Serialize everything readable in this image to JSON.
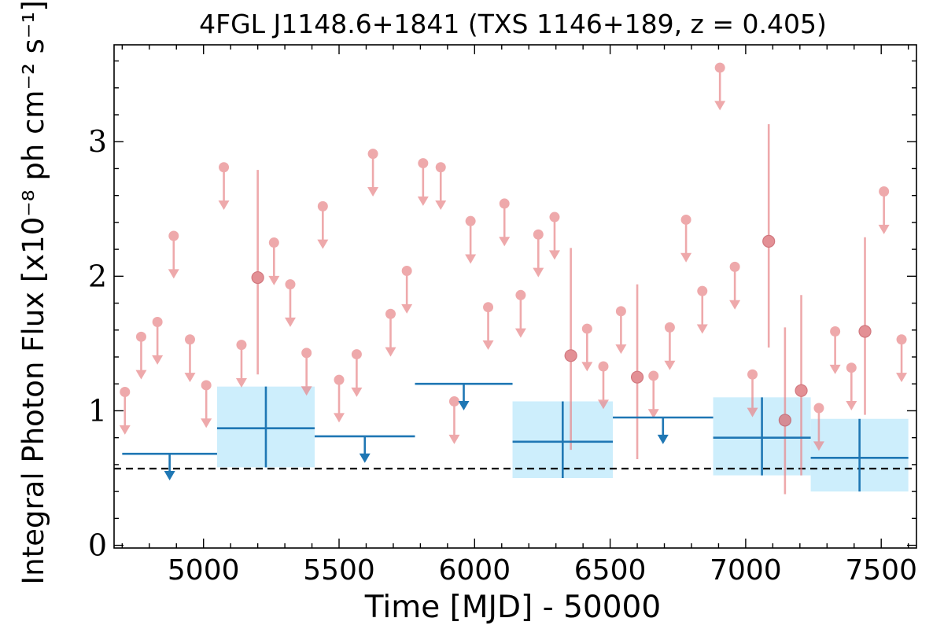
{
  "chart_data": {
    "type": "scatter",
    "title": "4FGL J1148.6+1841 (TXS 1146+189, z = 0.405)",
    "xlabel": "Time [MJD] - 50000",
    "ylabel": "Integral Photon Flux [x10⁻⁸ ph cm⁻² s⁻¹]",
    "xlim": [
      4670,
      7630
    ],
    "ylim": [
      -0.02,
      3.72
    ],
    "xticks": [
      5000,
      5500,
      6000,
      6500,
      7000,
      7500
    ],
    "yticks": [
      0,
      1,
      2,
      3
    ],
    "grid": false,
    "dashed_reference_line": 0.57,
    "colors": {
      "short_bin": "#e8888c",
      "long_bin": "#1f77b4",
      "long_bin_band": "#cdeefc",
      "reference_line": "#000000"
    },
    "short_bin_upper_limits": [
      {
        "x": 4710,
        "y": 1.14
      },
      {
        "x": 4770,
        "y": 1.55
      },
      {
        "x": 4830,
        "y": 1.66
      },
      {
        "x": 4890,
        "y": 2.3
      },
      {
        "x": 4950,
        "y": 1.53
      },
      {
        "x": 5010,
        "y": 1.19
      },
      {
        "x": 5075,
        "y": 2.81
      },
      {
        "x": 5140,
        "y": 1.49
      },
      {
        "x": 5260,
        "y": 2.25
      },
      {
        "x": 5320,
        "y": 1.94
      },
      {
        "x": 5380,
        "y": 1.43
      },
      {
        "x": 5440,
        "y": 2.52
      },
      {
        "x": 5500,
        "y": 1.23
      },
      {
        "x": 5565,
        "y": 1.42
      },
      {
        "x": 5625,
        "y": 2.91
      },
      {
        "x": 5690,
        "y": 1.72
      },
      {
        "x": 5750,
        "y": 2.04
      },
      {
        "x": 5810,
        "y": 2.84
      },
      {
        "x": 5875,
        "y": 2.81
      },
      {
        "x": 5925,
        "y": 1.07
      },
      {
        "x": 5985,
        "y": 2.41
      },
      {
        "x": 6050,
        "y": 1.77
      },
      {
        "x": 6110,
        "y": 2.54
      },
      {
        "x": 6170,
        "y": 1.86
      },
      {
        "x": 6235,
        "y": 2.31
      },
      {
        "x": 6295,
        "y": 2.44
      },
      {
        "x": 6415,
        "y": 1.61
      },
      {
        "x": 6475,
        "y": 1.33
      },
      {
        "x": 6540,
        "y": 1.74
      },
      {
        "x": 6660,
        "y": 1.26
      },
      {
        "x": 6720,
        "y": 1.62
      },
      {
        "x": 6780,
        "y": 2.42
      },
      {
        "x": 6840,
        "y": 1.89
      },
      {
        "x": 6905,
        "y": 3.55
      },
      {
        "x": 6960,
        "y": 2.07
      },
      {
        "x": 7025,
        "y": 1.27
      },
      {
        "x": 7270,
        "y": 1.02
      },
      {
        "x": 7330,
        "y": 1.59
      },
      {
        "x": 7390,
        "y": 1.32
      },
      {
        "x": 7510,
        "y": 2.63
      },
      {
        "x": 7575,
        "y": 1.53
      }
    ],
    "short_bin_detections": [
      {
        "x": 5200,
        "y": 1.99,
        "ylo": 1.27,
        "yhi": 2.79
      },
      {
        "x": 6355,
        "y": 1.41,
        "ylo": 0.71,
        "yhi": 2.21
      },
      {
        "x": 6600,
        "y": 1.25,
        "ylo": 0.64,
        "yhi": 1.94
      },
      {
        "x": 7085,
        "y": 2.26,
        "ylo": 1.47,
        "yhi": 3.13
      },
      {
        "x": 7145,
        "y": 0.93,
        "ylo": 0.38,
        "yhi": 1.62
      },
      {
        "x": 7205,
        "y": 1.15,
        "ylo": 0.52,
        "yhi": 1.86
      },
      {
        "x": 7440,
        "y": 1.59,
        "ylo": 0.97,
        "yhi": 2.29
      }
    ],
    "long_bin_upper_limits": [
      {
        "x0": 4700,
        "x1": 5050,
        "y": 0.68
      },
      {
        "x0": 5410,
        "x1": 5780,
        "y": 0.81
      },
      {
        "x0": 5780,
        "x1": 6140,
        "y": 1.2
      },
      {
        "x0": 6510,
        "x1": 6880,
        "y": 0.95
      }
    ],
    "long_bin_detections": [
      {
        "x0": 5050,
        "x1": 5410,
        "y": 0.87,
        "ylo": 0.58,
        "yhi": 1.18
      },
      {
        "x0": 6140,
        "x1": 6510,
        "y": 0.77,
        "ylo": 0.5,
        "yhi": 1.07
      },
      {
        "x0": 6880,
        "x1": 7240,
        "y": 0.8,
        "ylo": 0.52,
        "yhi": 1.1
      },
      {
        "x0": 7240,
        "x1": 7600,
        "y": 0.65,
        "ylo": 0.4,
        "yhi": 0.94
      }
    ]
  }
}
